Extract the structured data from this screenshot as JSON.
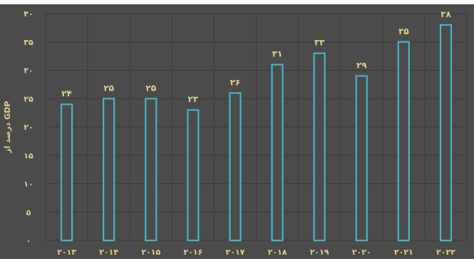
{
  "colors": {
    "background": "#4b4b4b",
    "grid": "#3a3a3a",
    "bar_stroke": "#43b6c4",
    "bar_fill": "#4b4b4b",
    "text": "#e3d18a"
  },
  "chart_data": {
    "type": "bar",
    "title": "",
    "xlabel": "",
    "ylabel": "درصد از GDP",
    "ylim": [
      0,
      40
    ],
    "yticks": [
      0,
      5,
      10,
      15,
      20,
      25,
      30,
      35,
      40
    ],
    "ytick_labels": [
      "۰",
      "۵",
      "۱۰",
      "۱۵",
      "۲۰",
      "۲۵",
      "۳۰",
      "۳۵",
      "۴۰"
    ],
    "grid": true,
    "legend": "none",
    "categories": [
      "۲۰۱۳",
      "۲۰۱۴",
      "۲۰۱۵",
      "۲۰۱۶",
      "۲۰۱۷",
      "۲۰۱۸",
      "۲۰۱۹",
      "۲۰۲۰",
      "۲۰۲۱",
      "۲۰۲۲"
    ],
    "values": [
      24,
      25,
      25,
      23,
      26,
      31,
      33,
      29,
      35,
      38
    ],
    "value_labels": [
      "۲۴",
      "۲۵",
      "۲۵",
      "۲۳",
      "۲۶",
      "۳۱",
      "۳۳",
      "۲۹",
      "۳۵",
      "۳۸"
    ]
  }
}
